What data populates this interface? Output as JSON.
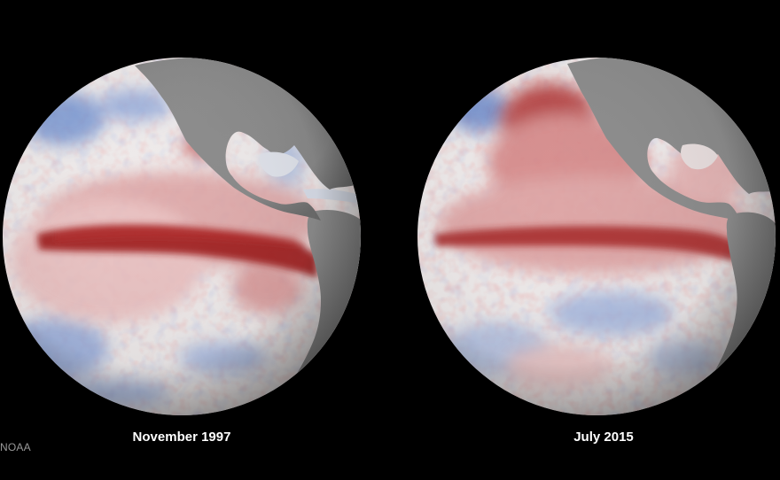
{
  "panels": [
    {
      "caption": "November 1997"
    },
    {
      "caption": "July 2015"
    }
  ],
  "credit": "NOAA",
  "colors": {
    "background": "#000000",
    "warm_anomaly": "#9e1b1b",
    "cool_anomaly": "#4a6fbf",
    "neutral_ocean": "#eeeaea",
    "land": "#8c8c8c",
    "caption_text": "#ffffff"
  }
}
